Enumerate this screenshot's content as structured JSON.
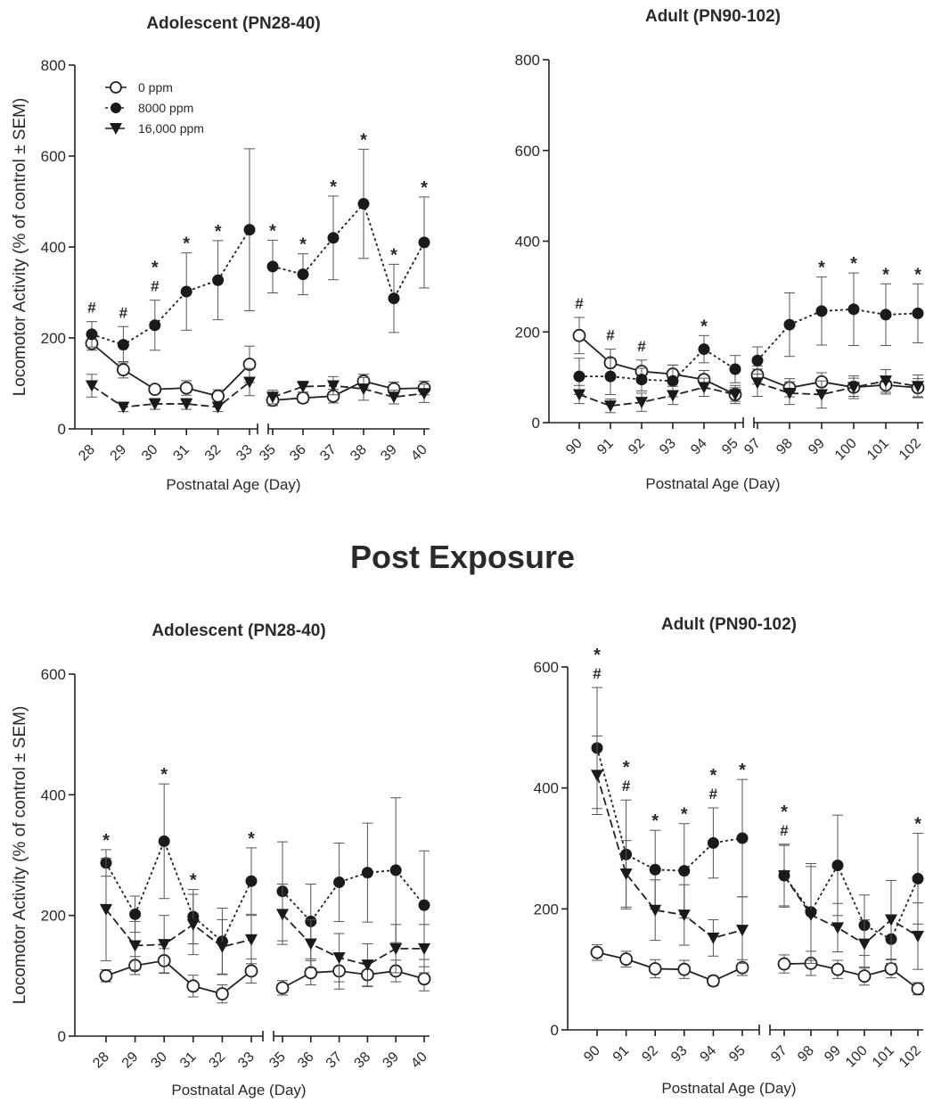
{
  "section_title": "Post Exposure",
  "legend": [
    {
      "label": "0 ppm",
      "marker": "open-circle"
    },
    {
      "label": "8000 ppm",
      "marker": "filled-circle"
    },
    {
      "label": "16,000 ppm",
      "marker": "filled-triangle-down"
    }
  ],
  "chart_data": [
    {
      "type": "line",
      "title": "Adolescent (PN28-40)",
      "xlabel": "Postnatal Age (Day)",
      "ylabel": "Locomotor Activity (% of control ± SEM)",
      "ylim": [
        0,
        800
      ],
      "yticks": [
        0,
        200,
        400,
        600,
        800
      ],
      "segments": [
        [
          28,
          29,
          30,
          31,
          32,
          33
        ],
        [
          35,
          36,
          37,
          38,
          39,
          40
        ]
      ],
      "series": [
        {
          "name": "0 ppm",
          "marker": "open-circle",
          "values": [
            188,
            130,
            87,
            90,
            72,
            142,
            63,
            68,
            72,
            105,
            88,
            90
          ],
          "err": [
            15,
            18,
            8,
            16,
            14,
            40,
            12,
            10,
            15,
            15,
            15,
            15
          ]
        },
        {
          "name": "8000 ppm",
          "marker": "filled-circle",
          "values": [
            208,
            185,
            228,
            302,
            327,
            438,
            357,
            340,
            420,
            495,
            287,
            410
          ],
          "err": [
            28,
            40,
            55,
            85,
            87,
            178,
            58,
            45,
            92,
            120,
            75,
            100
          ]
        },
        {
          "name": "16,000 ppm",
          "marker": "filled-triangle-down",
          "values": [
            95,
            48,
            55,
            55,
            48,
            103,
            70,
            93,
            95,
            88,
            70,
            78
          ],
          "err": [
            25,
            10,
            12,
            12,
            10,
            30,
            15,
            12,
            20,
            25,
            15,
            20
          ]
        }
      ],
      "annotations": {
        "x": [
          28,
          29,
          30,
          31,
          32,
          33,
          35,
          36,
          37,
          38,
          39,
          40
        ],
        "labels": [
          [
            "#"
          ],
          [
            "#"
          ],
          [
            "*",
            "#"
          ],
          [
            "*"
          ],
          [
            "*"
          ],
          [],
          [
            "*"
          ],
          [
            "*"
          ],
          [
            "*"
          ],
          [
            "*"
          ],
          [
            "*"
          ],
          [
            "*"
          ]
        ]
      }
    },
    {
      "type": "line",
      "title": "Adult (PN90-102)",
      "xlabel": "Postnatal Age (Day)",
      "ylabel": "",
      "ylim": [
        0,
        800
      ],
      "yticks": [
        0,
        200,
        400,
        600,
        800
      ],
      "segments": [
        [
          90,
          91,
          92,
          93,
          94,
          95
        ],
        [
          97,
          98,
          99,
          100,
          101,
          102
        ]
      ],
      "series": [
        {
          "name": "0 ppm",
          "marker": "open-circle",
          "values": [
            192,
            132,
            113,
            107,
            95,
            62,
            105,
            77,
            90,
            78,
            83,
            77
          ],
          "err": [
            40,
            30,
            25,
            20,
            20,
            15,
            20,
            20,
            20,
            20,
            20,
            20
          ]
        },
        {
          "name": "8000 ppm",
          "marker": "filled-circle",
          "values": [
            102,
            102,
            95,
            92,
            162,
            118,
            137,
            216,
            246,
            250,
            238,
            241
          ],
          "err": [
            40,
            40,
            25,
            35,
            30,
            30,
            30,
            70,
            75,
            80,
            68,
            65
          ]
        },
        {
          "name": "16,000 ppm",
          "marker": "filled-triangle-down",
          "values": [
            62,
            37,
            45,
            60,
            78,
            62,
            88,
            65,
            62,
            78,
            92,
            80
          ],
          "err": [
            20,
            15,
            20,
            20,
            20,
            20,
            30,
            25,
            30,
            25,
            25,
            25
          ]
        }
      ],
      "annotations": {
        "x": [
          90,
          91,
          92,
          93,
          94,
          95,
          97,
          98,
          99,
          100,
          101,
          102
        ],
        "labels": [
          [
            "#"
          ],
          [
            "#"
          ],
          [
            "#"
          ],
          [],
          [
            "*"
          ],
          [],
          [],
          [],
          [
            "*"
          ],
          [
            "*"
          ],
          [
            "*"
          ],
          [
            "*"
          ]
        ]
      }
    },
    {
      "type": "line",
      "title": "Adolescent (PN28-40)",
      "xlabel": "Postnatal Age (Day)",
      "ylabel": "Locomotor Activity (% of control ± SEM)",
      "ylim": [
        0,
        600
      ],
      "yticks": [
        0,
        200,
        400,
        600
      ],
      "segments": [
        [
          28,
          29,
          30,
          31,
          32,
          33
        ],
        [
          35,
          36,
          37,
          38,
          39,
          40
        ]
      ],
      "series": [
        {
          "name": "0 ppm",
          "marker": "open-circle",
          "values": [
            100,
            117,
            125,
            83,
            70,
            108,
            80,
            105,
            108,
            102,
            108,
            95
          ],
          "err": [
            10,
            15,
            20,
            18,
            15,
            20,
            12,
            20,
            30,
            20,
            18,
            20
          ]
        },
        {
          "name": "8000 ppm",
          "marker": "filled-circle",
          "values": [
            287,
            202,
            323,
            198,
            157,
            257,
            240,
            190,
            255,
            271,
            275,
            217
          ],
          "err": [
            22,
            30,
            95,
            45,
            55,
            55,
            82,
            62,
            65,
            82,
            120,
            90
          ]
        },
        {
          "name": "16,000 ppm",
          "marker": "filled-triangle-down",
          "values": [
            210,
            150,
            152,
            185,
            148,
            160,
            202,
            153,
            130,
            118,
            145,
            145
          ],
          "err": [
            85,
            40,
            48,
            50,
            45,
            40,
            50,
            40,
            40,
            35,
            40,
            40
          ]
        }
      ],
      "annotations": {
        "x": [
          28,
          29,
          30,
          31,
          32,
          33,
          35,
          36,
          37,
          38,
          39,
          40
        ],
        "labels": [
          [
            "*"
          ],
          [],
          [
            "*"
          ],
          [
            "*"
          ],
          [],
          [
            "*"
          ],
          [],
          [],
          [],
          [],
          [],
          []
        ]
      }
    },
    {
      "type": "line",
      "title": "Adult (PN90-102)",
      "xlabel": "Postnatal Age (Day)",
      "ylabel": "",
      "ylim": [
        0,
        600
      ],
      "yticks": [
        0,
        200,
        400,
        600
      ],
      "segments": [
        [
          90,
          91,
          92,
          93,
          94,
          95
        ],
        [
          97,
          98,
          99,
          100,
          101,
          102
        ]
      ],
      "series": [
        {
          "name": "0 ppm",
          "marker": "open-circle",
          "values": [
            128,
            117,
            101,
            100,
            81,
            103,
            109,
            110,
            100,
            89,
            101,
            68
          ],
          "err": [
            13,
            13,
            15,
            15,
            8,
            13,
            15,
            20,
            15,
            15,
            15,
            10
          ]
        },
        {
          "name": "8000 ppm",
          "marker": "filled-circle",
          "values": [
            466,
            290,
            265,
            263,
            309,
            317,
            255,
            195,
            272,
            173,
            150,
            250
          ],
          "err": [
            100,
            90,
            65,
            78,
            58,
            97,
            52,
            80,
            83,
            50,
            40,
            75
          ]
        },
        {
          "name": "16,000 ppm",
          "marker": "filled-triangle-down",
          "values": [
            421,
            258,
            198,
            190,
            152,
            165,
            255,
            190,
            169,
            142,
            182,
            155
          ],
          "err": [
            65,
            55,
            50,
            50,
            30,
            55,
            50,
            80,
            40,
            40,
            65,
            55
          ]
        }
      ],
      "annotations": {
        "x": [
          90,
          91,
          92,
          93,
          94,
          95,
          97,
          98,
          99,
          100,
          101,
          102
        ],
        "labels": [
          [
            "*",
            "#"
          ],
          [
            "*",
            "#"
          ],
          [
            "*"
          ],
          [
            "*"
          ],
          [
            "*",
            "#"
          ],
          [
            "*"
          ],
          [
            "*",
            "#"
          ],
          [],
          [],
          [],
          [],
          [
            "*"
          ]
        ]
      }
    }
  ]
}
